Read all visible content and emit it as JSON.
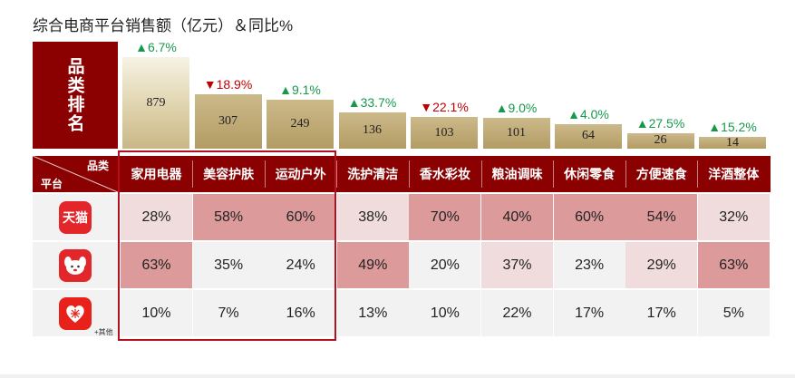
{
  "title": "综合电商平台销售额（亿元）＆同比%",
  "rank_label": "品类排名",
  "corner": {
    "category": "品类",
    "platform": "平台"
  },
  "platforms": [
    {
      "name": "天猫",
      "logo_text": "天猫",
      "icon": "tmall-logo-icon"
    },
    {
      "name": "京东",
      "logo_text": "",
      "icon": "jd-dog-logo-icon"
    },
    {
      "name": "拼多多",
      "logo_text": "",
      "icon": "pinduoduo-heart-logo-icon",
      "note": "+其他"
    }
  ],
  "colors": {
    "header": "#8b0000",
    "high": "#dc9a9a",
    "mid": "#f0dcdc",
    "low": "#f2f2f2",
    "up": "#159a4c",
    "down": "#c00000",
    "highlight": "#b40f1d"
  },
  "chart_data": {
    "type": "bar",
    "categories": [
      "家用电器",
      "美容护肤",
      "运动户外",
      "洗护清洁",
      "香水彩妆",
      "粮油调味",
      "休闲零食",
      "方便速食",
      "洋酒整体"
    ],
    "values": [
      879,
      307,
      249,
      136,
      103,
      101,
      64,
      26,
      14
    ],
    "growth_labels": [
      "6.7%",
      "18.9%",
      "9.1%",
      "33.7%",
      "22.1%",
      "9.0%",
      "4.0%",
      "27.5%",
      "15.2%"
    ],
    "growth_direction": [
      "up",
      "down",
      "up",
      "up",
      "down",
      "up",
      "up",
      "up",
      "up"
    ],
    "ylim": [
      0,
      879
    ],
    "table": {
      "rows": [
        {
          "platform": "天猫",
          "values": [
            "28%",
            "58%",
            "60%",
            "38%",
            "70%",
            "40%",
            "60%",
            "54%",
            "32%"
          ],
          "levels": [
            "mid",
            "hi",
            "hi",
            "mid",
            "hi",
            "hi",
            "hi",
            "hi",
            "mid"
          ]
        },
        {
          "platform": "京东",
          "values": [
            "63%",
            "35%",
            "24%",
            "49%",
            "20%",
            "37%",
            "23%",
            "29%",
            "63%"
          ],
          "levels": [
            "hi",
            "lo",
            "lo",
            "hi",
            "lo",
            "mid",
            "lo",
            "mid",
            "hi"
          ]
        },
        {
          "platform": "拼多多+其他",
          "values": [
            "10%",
            "7%",
            "16%",
            "13%",
            "10%",
            "22%",
            "17%",
            "17%",
            "5%"
          ],
          "levels": [
            "lo",
            "lo",
            "lo",
            "lo",
            "lo",
            "lo",
            "lo",
            "lo",
            "lo"
          ]
        }
      ]
    }
  }
}
